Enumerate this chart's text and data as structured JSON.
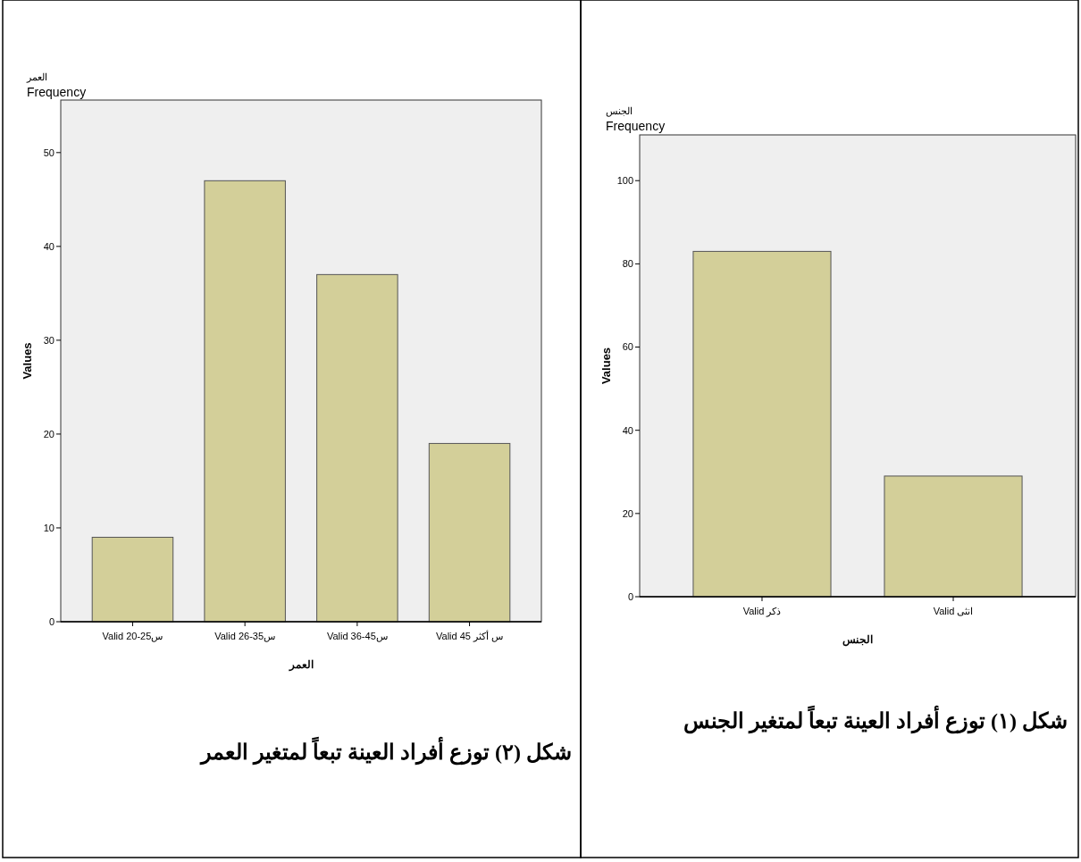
{
  "chart_data": [
    {
      "type": "bar",
      "title": "الجنس",
      "subtitle": "Frequency",
      "ylabel": "Values",
      "xlabel": "الجنس",
      "categories": [
        "Valid ذكر",
        "Valid انثى"
      ],
      "values": [
        83,
        29
      ],
      "color": "#d3cf99",
      "ylim": [
        0,
        111
      ],
      "yticks": [
        0,
        20,
        40,
        60,
        80,
        100
      ],
      "grid": false,
      "annotations": [
        "شكل (١) توزع أفراد العينة تبعاً لمتغير الجنس"
      ]
    },
    {
      "type": "bar",
      "title": "العمر",
      "subtitle": "Frequency",
      "ylabel": "Values",
      "xlabel": "العمر",
      "categories": [
        "Valid 20-25س",
        "Valid 26-35س",
        "Valid 36-45س",
        "Valid 45 س أكثر"
      ],
      "values": [
        9,
        47,
        37,
        19
      ],
      "color": "#d3cf99",
      "ylim": [
        0,
        55.6
      ],
      "yticks": [
        0,
        10,
        20,
        30,
        40,
        50
      ],
      "grid": false,
      "annotations": [
        "شكل (٢) توزع أفراد العينة تبعاً لمتغير العمر"
      ]
    }
  ]
}
